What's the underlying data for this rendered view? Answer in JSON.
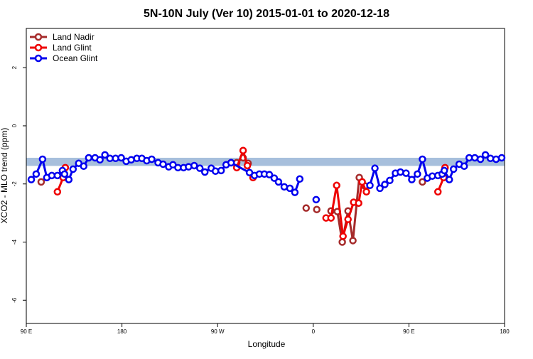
{
  "chart_data": {
    "type": "line",
    "title": "5N-10N July (Ver 10)   2015-01-01 to 2020-12-18",
    "x_label": "Longitude",
    "y_label": "XCO2 - MLO trend (ppm)",
    "xlim": [
      90,
      540
    ],
    "xticks": [
      {
        "value": 90,
        "label": "90 E"
      },
      {
        "value": 180,
        "label": "180"
      },
      {
        "value": 270,
        "label": "90 W"
      },
      {
        "value": 360,
        "label": "0"
      },
      {
        "value": 450,
        "label": "90 E"
      },
      {
        "value": 540,
        "label": "180"
      }
    ],
    "ylim": [
      -6.8,
      3.35
    ],
    "yticks": [
      -6,
      -4,
      -2,
      0,
      2
    ],
    "band": [
      -1.1,
      -1.38
    ],
    "band_color": "#a7bfdc",
    "legend": "top-left",
    "series": [
      {
        "name": "Land Nadir",
        "color": "#a52a2a",
        "x": [
          104,
          null,
          282.7,
          288,
          294,
          298.7,
          null,
          353.3,
          null,
          363.3,
          null,
          376.7,
          382.7,
          387.3,
          392.7,
          397.3,
          403.3,
          408.7,
          null,
          462.7
        ],
        "values": [
          -1.93,
          null,
          -1.27,
          -1.27,
          -1.1,
          -1.29,
          null,
          -2.83,
          null,
          -2.88,
          null,
          -2.93,
          -2.95,
          -4.0,
          -2.93,
          -3.95,
          -1.78,
          -2.07,
          null,
          -1.93
        ]
      },
      {
        "name": "Land Glint",
        "color": "#ee0000",
        "x": [
          119.3,
          124.7,
          126.7,
          null,
          288,
          294,
          298,
          303.3,
          null,
          372,
          376.7,
          382,
          388,
          392.7,
          398,
          402.7,
          406,
          410,
          null,
          477.3,
          482.7,
          484
        ],
        "values": [
          -2.27,
          -1.78,
          -1.44,
          null,
          -1.44,
          -0.85,
          -1.37,
          -1.78,
          null,
          -3.17,
          -3.17,
          -2.05,
          -3.8,
          -3.22,
          -2.63,
          -2.66,
          -1.93,
          -2.27,
          null,
          -2.27,
          -1.78,
          -1.44
        ]
      },
      {
        "name": "Ocean Glint",
        "color": "#0000ee",
        "x": [
          94.7,
          99.3,
          105.3,
          109.3,
          114,
          119.3,
          124,
          126,
          130,
          134,
          139.3,
          144,
          148.7,
          154.7,
          159.3,
          164,
          168.7,
          174,
          179.3,
          184,
          188.7,
          194,
          198.7,
          203.3,
          208,
          214,
          218.7,
          224,
          228,
          232.7,
          238,
          242.7,
          248,
          253.3,
          258,
          264,
          268,
          273.3,
          278,
          282.7,
          300,
          304.7,
          309.3,
          314,
          318.7,
          323.3,
          327.3,
          332.7,
          338,
          342.7,
          347.3,
          null,
          362.7,
          null,
          413.3,
          418,
          422.7,
          427.3,
          432,
          437.3,
          442,
          447.3,
          452.7,
          458,
          462.7,
          467.3,
          472,
          477.3,
          481.3,
          483.3,
          488,
          492,
          497.3,
          502,
          506.7,
          512,
          517.3,
          522,
          526.7,
          532,
          537.3
        ],
        "values": [
          -1.85,
          -1.66,
          -1.15,
          -1.78,
          -1.71,
          -1.71,
          -1.54,
          -1.66,
          -1.85,
          -1.49,
          -1.29,
          -1.39,
          -1.1,
          -1.1,
          -1.17,
          -1.0,
          -1.12,
          -1.12,
          -1.1,
          -1.22,
          -1.17,
          -1.12,
          -1.12,
          -1.2,
          -1.15,
          -1.27,
          -1.32,
          -1.41,
          -1.34,
          -1.44,
          -1.44,
          -1.41,
          -1.37,
          -1.46,
          -1.59,
          -1.46,
          -1.56,
          -1.54,
          -1.34,
          -1.27,
          -1.61,
          -1.71,
          -1.66,
          -1.66,
          -1.68,
          -1.8,
          -1.93,
          -2.1,
          -2.15,
          -2.29,
          -1.83,
          null,
          -2.54,
          null,
          -2.05,
          -1.46,
          -2.15,
          -2.02,
          -1.88,
          -1.63,
          -1.59,
          -1.63,
          -1.85,
          -1.66,
          -1.15,
          -1.8,
          -1.73,
          -1.71,
          -1.66,
          -1.54,
          -1.85,
          -1.49,
          -1.32,
          -1.39,
          -1.1,
          -1.1,
          -1.15,
          -1.0,
          -1.12,
          -1.15,
          -1.1
        ]
      }
    ]
  }
}
